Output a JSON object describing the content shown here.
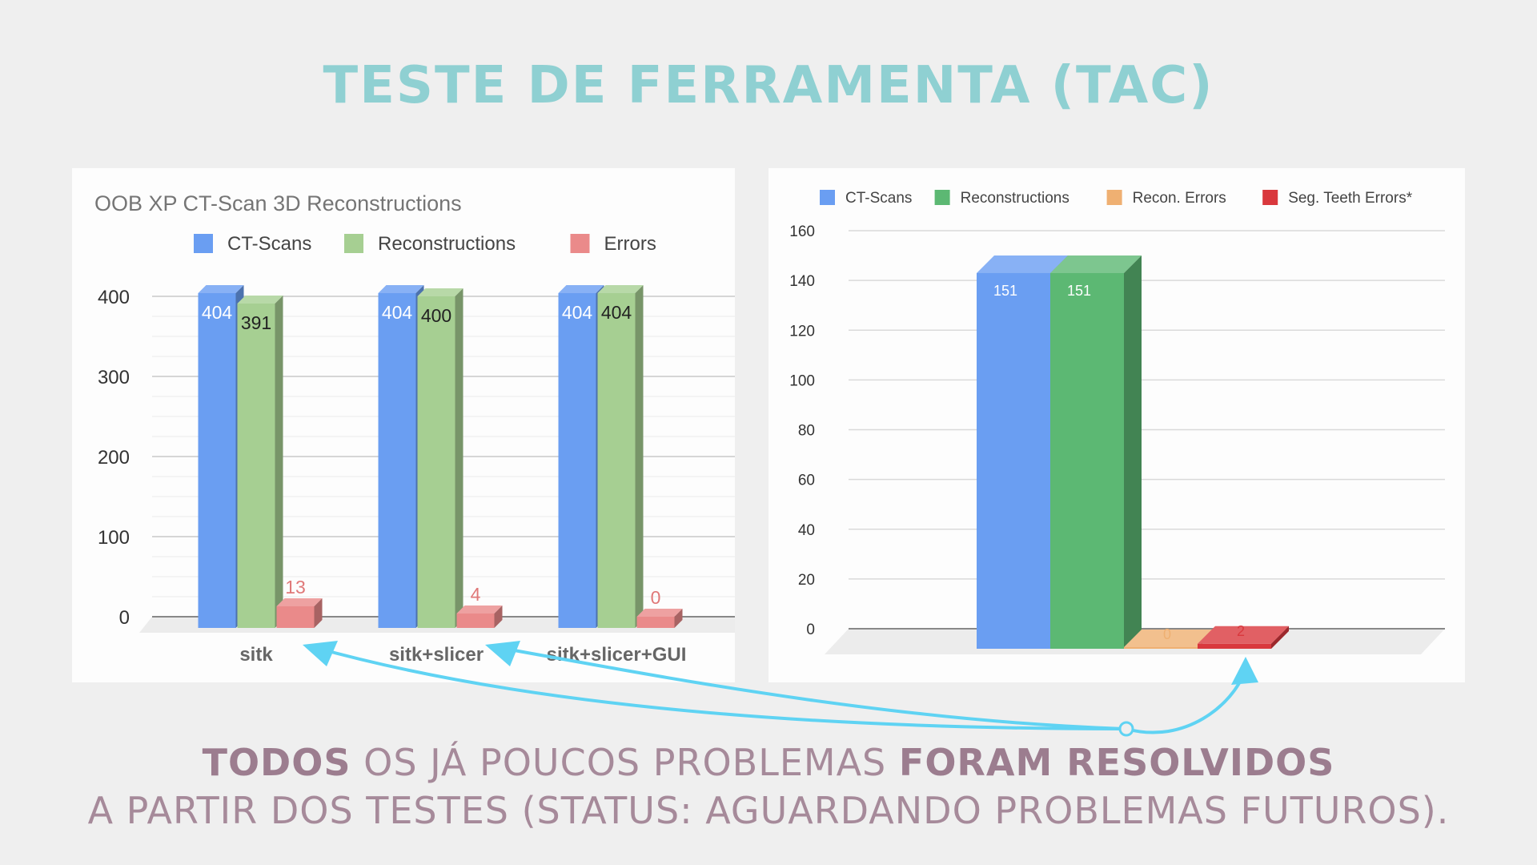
{
  "slide": {
    "title": "TESTE DE FERRAMENTA (TAC)",
    "caption_line1_bold_a": "TODOS",
    "caption_line1_mid": " OS JÁ POUCOS PROBLEMAS ",
    "caption_line1_bold_b": "FORAM RESOLVIDOS",
    "caption_line2": "A PARTIR DOS TESTES (STATUS: AGUARDANDO PROBLEMAS FUTUROS).",
    "arrow_color": "#5fd3f3"
  },
  "chart_data": [
    {
      "type": "bar",
      "title": "OOB XP CT-Scan 3D Reconstructions",
      "categories": [
        "sitk",
        "sitk+slicer",
        "sitk+slicer+GUI"
      ],
      "series": [
        {
          "name": "CT-Scans",
          "color": "#6a9ef2",
          "values": [
            404,
            404,
            404
          ]
        },
        {
          "name": "Reconstructions",
          "color": "#a6cf92",
          "values": [
            391,
            400,
            404
          ]
        },
        {
          "name": "Errors",
          "color": "#ea8a8a",
          "values": [
            13,
            4,
            0
          ]
        }
      ],
      "ylim": [
        0,
        400
      ],
      "yticks": [
        "0",
        "100",
        "200",
        "300",
        "400"
      ],
      "xlabel": "",
      "ylabel": "",
      "legend": "top",
      "grid": true
    },
    {
      "type": "bar",
      "title": "",
      "categories": [
        ""
      ],
      "series": [
        {
          "name": "CT-Scans",
          "color": "#6a9ef2",
          "values": [
            151
          ]
        },
        {
          "name": "Reconstructions",
          "color": "#5cb873",
          "values": [
            151
          ]
        },
        {
          "name": "Recon. Errors",
          "color": "#efb072",
          "values": [
            0
          ]
        },
        {
          "name": "Seg. Teeth Errors*",
          "color": "#d9383d",
          "values": [
            2
          ]
        }
      ],
      "ylim": [
        0,
        160
      ],
      "yticks": [
        "0",
        "20",
        "40",
        "60",
        "80",
        "100",
        "120",
        "140",
        "160"
      ],
      "xlabel": "",
      "ylabel": "",
      "legend": "top",
      "grid": true
    }
  ]
}
